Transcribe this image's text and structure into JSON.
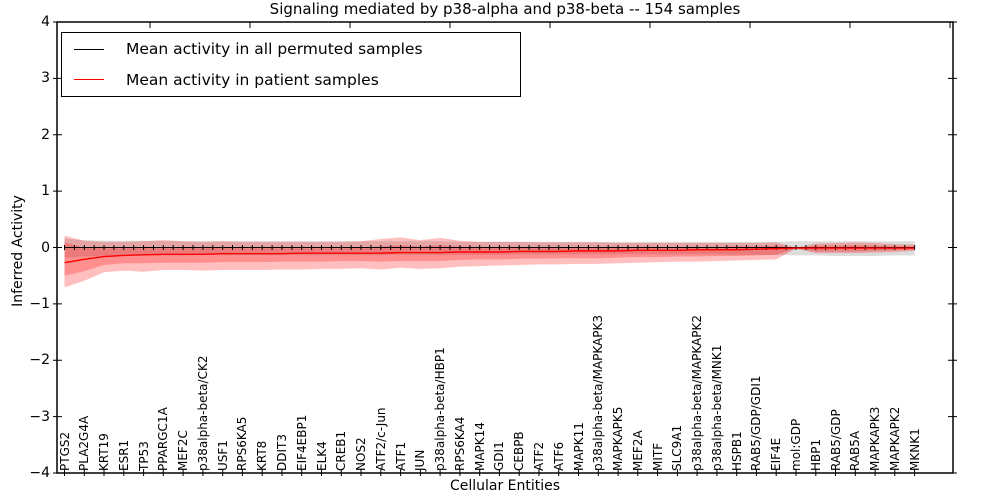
{
  "chart_data": {
    "type": "line",
    "title": "Signaling mediated by p38-alpha and p38-beta -- 154 samples",
    "xlabel": "Cellular Entities",
    "ylabel": "Inferred Activity",
    "ylim": [
      -4,
      4
    ],
    "yticks": [
      4,
      3,
      2,
      1,
      0,
      -1,
      -2,
      -3,
      -4
    ],
    "grid": false,
    "legend": {
      "position": "upper left",
      "entries": [
        {
          "label": "Mean activity in all permuted samples",
          "color": "#000000"
        },
        {
          "label": "Mean activity in patient samples",
          "color": "#ff0000"
        }
      ]
    },
    "colors": {
      "permuted_line": "#000000",
      "patient_line": "#ff0000",
      "patient_band": "rgba(255,0,0,0.25)",
      "permuted_band": "rgba(128,128,128,0.28)"
    },
    "categories": [
      "PTGS2",
      "PLA2G4A",
      "KRT19",
      "ESR1",
      "TP53",
      "PPARGC1A",
      "MEF2C",
      "p38alpha-beta/CK2",
      "USF1",
      "RPS6KA5",
      "KRT8",
      "DDIT3",
      "EIF4EBP1",
      "ELK4",
      "CREB1",
      "NOS2",
      "ATF2/c-Jun",
      "ATF1",
      "JUN",
      "p38alpha-beta/HBP1",
      "RPS6KA4",
      "MAPK14",
      "GDI1",
      "CEBPB",
      "ATF2",
      "ATF6",
      "MAPK11",
      "p38alpha-beta/MAPKAPK3",
      "MAPKAPK5",
      "MEF2A",
      "MITF",
      "SLC9A1",
      "p38alpha-beta/MAPKAPK2",
      "p38alpha-beta/MNK1",
      "HSPB1",
      "RAB5/GDP/GDI1",
      "EIF4E",
      "mol:GDP",
      "HBP1",
      "RAB5/GDP",
      "RAB5A",
      "MAPKAPK3",
      "MAPKAPK2",
      "MKNK1"
    ],
    "series": [
      {
        "name": "Mean activity in all permuted samples",
        "color": "#000000",
        "values": [
          0,
          0,
          0,
          0,
          0,
          0,
          0,
          0,
          0,
          0,
          0,
          0,
          0,
          0,
          0,
          0,
          0,
          0,
          0,
          0,
          0,
          0,
          0,
          0,
          0,
          0,
          0,
          0,
          0,
          0,
          0,
          0,
          0,
          0,
          0,
          0,
          0,
          0,
          0,
          0,
          0,
          0,
          0,
          0
        ]
      },
      {
        "name": "Mean activity in patient samples",
        "color": "#ff0000",
        "values": [
          -0.27,
          -0.21,
          -0.16,
          -0.14,
          -0.13,
          -0.12,
          -0.12,
          -0.12,
          -0.11,
          -0.11,
          -0.11,
          -0.11,
          -0.1,
          -0.1,
          -0.1,
          -0.1,
          -0.1,
          -0.09,
          -0.09,
          -0.09,
          -0.08,
          -0.08,
          -0.08,
          -0.07,
          -0.07,
          -0.07,
          -0.06,
          -0.06,
          -0.06,
          -0.05,
          -0.05,
          -0.05,
          -0.04,
          -0.04,
          -0.04,
          -0.03,
          -0.02,
          -0.01,
          -0.01,
          -0.01,
          -0.01,
          -0.01,
          -0.01,
          -0.01
        ]
      }
    ],
    "bands": [
      {
        "name": "permuted-samples-range",
        "color": "rgba(128,128,128,0.28)",
        "upper": [
          0.16,
          0.13,
          0.12,
          0.12,
          0.12,
          0.12,
          0.11,
          0.11,
          0.11,
          0.11,
          0.11,
          0.11,
          0.11,
          0.11,
          0.11,
          0.11,
          0.11,
          0.11,
          0.11,
          0.11,
          0.1,
          0.1,
          0.1,
          0.1,
          0.1,
          0.1,
          0.1,
          0.1,
          0.1,
          0.1,
          0.1,
          0.1,
          0.1,
          0.1,
          0.1,
          0.1,
          0.1,
          0.11,
          0.11,
          0.11,
          0.11,
          0.11,
          0.11,
          0.11
        ],
        "lower": [
          -0.18,
          -0.16,
          -0.15,
          -0.14,
          -0.14,
          -0.14,
          -0.14,
          -0.13,
          -0.13,
          -0.13,
          -0.13,
          -0.13,
          -0.13,
          -0.13,
          -0.13,
          -0.13,
          -0.13,
          -0.13,
          -0.13,
          -0.13,
          -0.13,
          -0.13,
          -0.13,
          -0.12,
          -0.12,
          -0.12,
          -0.12,
          -0.12,
          -0.12,
          -0.12,
          -0.12,
          -0.12,
          -0.12,
          -0.12,
          -0.13,
          -0.13,
          -0.13,
          -0.14,
          -0.14,
          -0.15,
          -0.15,
          -0.15,
          -0.14,
          -0.14
        ]
      },
      {
        "name": "patient-samples-range-outer",
        "color": "rgba(255,0,0,0.25)",
        "upper": [
          0.21,
          0.12,
          0.1,
          0.1,
          0.11,
          0.13,
          0.11,
          0.1,
          0.11,
          0.1,
          0.1,
          0.1,
          0.1,
          0.1,
          0.1,
          0.11,
          0.15,
          0.18,
          0.13,
          0.17,
          0.12,
          0.1,
          0.1,
          0.1,
          0.09,
          0.09,
          0.09,
          0.09,
          0.08,
          0.08,
          0.08,
          0.08,
          0.08,
          0.08,
          0.08,
          0.08,
          0.09,
          0.0,
          0.07,
          0.08,
          0.09,
          0.08,
          0.06,
          0.05
        ],
        "lower": [
          -0.71,
          -0.59,
          -0.44,
          -0.41,
          -0.43,
          -0.4,
          -0.4,
          -0.41,
          -0.4,
          -0.4,
          -0.4,
          -0.39,
          -0.39,
          -0.38,
          -0.38,
          -0.37,
          -0.39,
          -0.36,
          -0.38,
          -0.37,
          -0.34,
          -0.33,
          -0.32,
          -0.31,
          -0.3,
          -0.3,
          -0.29,
          -0.29,
          -0.28,
          -0.27,
          -0.26,
          -0.25,
          -0.25,
          -0.24,
          -0.23,
          -0.22,
          -0.21,
          -0.02,
          -0.1,
          -0.1,
          -0.1,
          -0.09,
          -0.08,
          -0.06
        ]
      },
      {
        "name": "patient-samples-range-inner",
        "color": "rgba(255,0,0,0.25)",
        "upper": [
          0.09,
          0.0,
          -0.01,
          -0.01,
          0.0,
          0.01,
          0.0,
          -0.01,
          0.0,
          -0.01,
          -0.01,
          -0.01,
          -0.01,
          -0.01,
          -0.01,
          0.0,
          0.02,
          0.04,
          0.02,
          0.04,
          0.02,
          0.01,
          0.01,
          0.01,
          0.01,
          0.01,
          0.01,
          0.01,
          0.01,
          0.01,
          0.01,
          0.01,
          0.01,
          0.01,
          0.02,
          0.02,
          0.03,
          -0.01,
          0.03,
          0.03,
          0.04,
          0.03,
          0.02,
          0.02
        ],
        "lower": [
          -0.5,
          -0.42,
          -0.31,
          -0.28,
          -0.28,
          -0.27,
          -0.27,
          -0.27,
          -0.26,
          -0.26,
          -0.26,
          -0.25,
          -0.25,
          -0.25,
          -0.24,
          -0.24,
          -0.25,
          -0.24,
          -0.24,
          -0.24,
          -0.22,
          -0.21,
          -0.21,
          -0.2,
          -0.2,
          -0.19,
          -0.19,
          -0.19,
          -0.18,
          -0.17,
          -0.17,
          -0.16,
          -0.16,
          -0.15,
          -0.15,
          -0.14,
          -0.13,
          -0.02,
          -0.07,
          -0.07,
          -0.07,
          -0.06,
          -0.05,
          -0.04
        ]
      }
    ]
  }
}
